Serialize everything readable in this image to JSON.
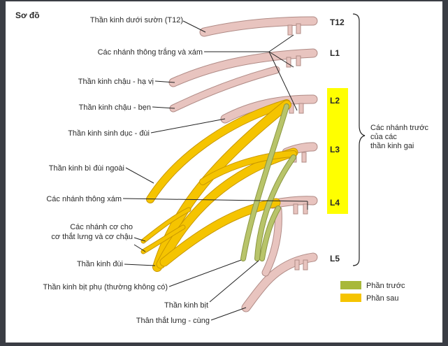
{
  "title": "Sơ đồ",
  "labels": {
    "t12_nerve": "Thần kinh dưới sườn (T12)",
    "rami_white_gray": "Các nhánh thông trắng và xám",
    "iliohypogastric": "Thần kinh chậu - hạ vị",
    "ilioinguinal": "Thần kinh chậu - bẹn",
    "genitofemoral": "Thần kinh sinh dục - đùi",
    "lat_femoral_cutaneous": "Thần kinh bì đùi ngoài",
    "gray_rami": "Các nhánh thông xám",
    "muscular_branches_1": "Các nhánh cơ cho",
    "muscular_branches_2": "cơ thắt lưng và cơ chậu",
    "femoral": "Thần kinh đùi",
    "accessory_obturator": "Thần kinh bịt phụ (thường không có)",
    "obturator": "Thần kinh bịt",
    "lumbosacral_trunk": "Thân thắt lưng - cùng"
  },
  "levels": [
    "T12",
    "L1",
    "L2",
    "L3",
    "L4",
    "L5"
  ],
  "brace_label": [
    "Các nhánh trước",
    "của các",
    "thần kinh gai"
  ],
  "legend": [
    {
      "label": "Phần trước",
      "color": "#a8b83a"
    },
    {
      "label": "Phần sau",
      "color": "#f5c400"
    }
  ],
  "colors": {
    "nerve_pink": "#e8c4bf",
    "nerve_outline": "#b08b86",
    "posterior": "#f5c400",
    "anterior": "#b8c46a",
    "highlight": "#ffff00"
  }
}
